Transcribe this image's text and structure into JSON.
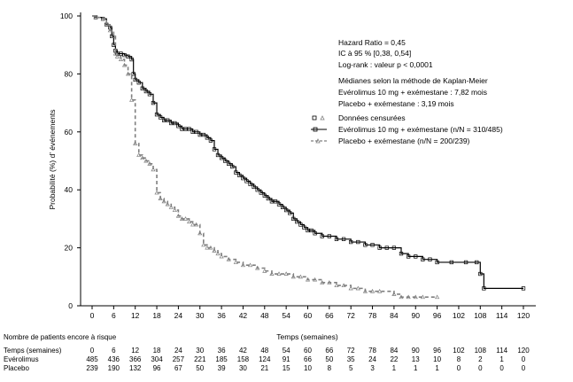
{
  "chart_data": {
    "type": "line",
    "subtype": "kaplan-meier",
    "title": "",
    "xlabel": "Temps (semaines)",
    "ylabel": "Probabilité (%) d’ événements",
    "xlim": [
      0,
      120
    ],
    "ylim": [
      0,
      100
    ],
    "x_ticks": [
      0,
      6,
      12,
      18,
      24,
      30,
      36,
      42,
      48,
      54,
      60,
      66,
      72,
      78,
      84,
      90,
      96,
      102,
      108,
      114,
      120
    ],
    "y_ticks": [
      0,
      20,
      40,
      60,
      80,
      100
    ],
    "grid": false,
    "legend_placement": "top-right",
    "annotations": {
      "hazard_ratio": "Hazard Ratio = 0,45",
      "ci": "IC à 95 % [0,38, 0,54]",
      "logrank": "Log-rank : valeur p < 0,0001",
      "median_title": "Médianes selon la méthode de Kaplan-Meier",
      "median_evero": "Evérolimus 10 mg + exémestane : 7,82 mois",
      "median_placebo": "Placebo + exémestane : 3,19 mois"
    },
    "legend": {
      "censored": "Données censurées",
      "evero": "Evérolimus 10 mg + exémestane (n/N = 310/485)",
      "placebo": "Placebo + exémestane (n/N = 200/239)"
    },
    "series": [
      {
        "name": "Evérolimus 10 mg + exémestane (n/N = 310/485)",
        "style": "solid",
        "color": "#000000",
        "x": [
          0,
          1,
          3,
          4,
          5,
          5.5,
          6,
          6.5,
          7,
          8,
          9,
          10,
          11,
          11.5,
          12,
          13,
          14,
          15,
          16,
          17,
          18,
          19,
          20,
          21,
          22,
          23,
          24,
          25,
          26,
          27,
          28,
          29,
          30,
          31,
          32,
          33,
          34,
          35,
          36,
          37,
          38,
          39,
          40,
          41,
          42,
          43,
          44,
          45,
          46,
          47,
          48,
          49,
          50,
          51,
          52,
          53,
          54,
          55,
          56,
          57,
          58,
          59,
          60,
          61,
          62,
          64,
          66,
          68,
          70,
          72,
          74,
          76,
          78,
          80,
          82,
          84,
          86,
          88,
          90,
          92,
          94,
          96,
          100,
          104,
          107,
          108,
          109,
          120
        ],
        "y": [
          100,
          99.5,
          99,
          97,
          96,
          93,
          90,
          88,
          87,
          87,
          86.5,
          86,
          85,
          80,
          78,
          77,
          75,
          74,
          73,
          70,
          66,
          65,
          64,
          64,
          63,
          63,
          62,
          61,
          61,
          61,
          60,
          60,
          59,
          59,
          58,
          57,
          54,
          52,
          51,
          50,
          49,
          48,
          46,
          45,
          44,
          43,
          42,
          41,
          40,
          39,
          38,
          37,
          36,
          36,
          35,
          34,
          33,
          32,
          30,
          29,
          28,
          27,
          26,
          26,
          25,
          24,
          24,
          23,
          23,
          22,
          22,
          21,
          21,
          20,
          20,
          20,
          18,
          17,
          17,
          16,
          16,
          15,
          15,
          15,
          15,
          11,
          6,
          6
        ]
      },
      {
        "name": "Placebo + exémestane (n/N = 200/239)",
        "style": "dashed",
        "color": "#7f7f7f",
        "x": [
          0,
          1,
          3,
          4,
          5,
          6,
          6.5,
          7,
          8,
          9,
          10,
          11,
          12,
          13,
          14,
          15,
          16,
          17,
          18,
          19,
          20,
          21,
          22,
          23,
          24,
          25,
          26,
          27,
          28,
          29,
          30,
          31,
          32,
          33,
          34,
          35,
          36,
          38,
          40,
          42,
          44,
          46,
          48,
          50,
          52,
          54,
          56,
          58,
          60,
          62,
          64,
          66,
          68,
          70,
          72,
          74,
          76,
          78,
          80,
          84,
          86,
          88,
          90,
          92,
          96
        ],
        "y": [
          100,
          99.5,
          99,
          97,
          95,
          93,
          87,
          86,
          85,
          83,
          80,
          71,
          56,
          52,
          51,
          50,
          49,
          47,
          39,
          37,
          36,
          35,
          34,
          33,
          31,
          30,
          30,
          29,
          28,
          28,
          25,
          21,
          20,
          20,
          19,
          18,
          17,
          16,
          15,
          14,
          14,
          13,
          12,
          11,
          11,
          11,
          10,
          10,
          9,
          9,
          8,
          8,
          7,
          7,
          6,
          6,
          5,
          5,
          5,
          4,
          3,
          3,
          3,
          3,
          3
        ]
      }
    ],
    "risk_table": {
      "title": "Nombre de patients encore à risque",
      "rows": [
        {
          "label": "Temps (semaines)",
          "values": [
            "0",
            "6",
            "12",
            "18",
            "24",
            "30",
            "36",
            "42",
            "48",
            "54",
            "60",
            "66",
            "72",
            "78",
            "84",
            "90",
            "96",
            "102",
            "108",
            "114",
            "120"
          ]
        },
        {
          "label": "Evérolimus",
          "values": [
            "485",
            "436",
            "366",
            "304",
            "257",
            "221",
            "185",
            "158",
            "124",
            "91",
            "66",
            "50",
            "35",
            "24",
            "22",
            "13",
            "10",
            "8",
            "2",
            "1",
            "0"
          ]
        },
        {
          "label": "Placebo",
          "values": [
            "239",
            "190",
            "132",
            "96",
            "67",
            "50",
            "39",
            "30",
            "21",
            "15",
            "10",
            "8",
            "5",
            "3",
            "1",
            "1",
            "1",
            "0",
            "0",
            "0",
            "0"
          ]
        }
      ]
    }
  }
}
